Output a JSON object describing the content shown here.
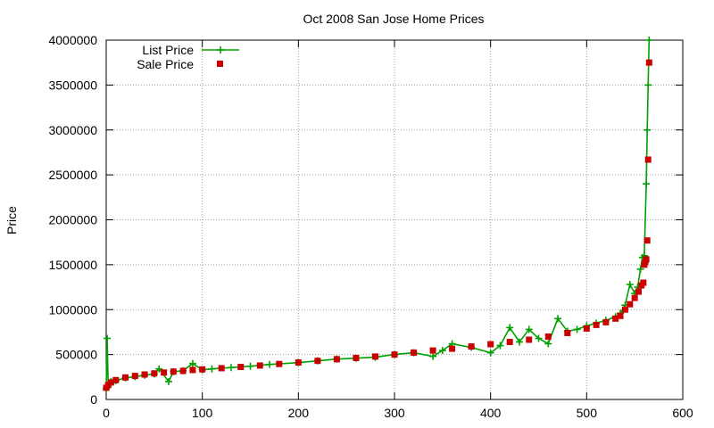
{
  "chart_data": {
    "type": "scatter",
    "title": "Oct 2008 San Jose Home Prices",
    "xlabel": "",
    "ylabel": "Price",
    "xlim": [
      0,
      600
    ],
    "ylim": [
      0,
      4000000
    ],
    "x_ticks": [
      0,
      100,
      200,
      300,
      400,
      500,
      600
    ],
    "y_ticks": [
      0,
      500000,
      1000000,
      1500000,
      2000000,
      2500000,
      3000000,
      3500000,
      4000000
    ],
    "grid": true,
    "legend_position": "top-left",
    "series": [
      {
        "name": "List Price",
        "style": "linespoints",
        "marker": "plus",
        "color": "#00a000",
        "points": [
          [
            0,
            120000
          ],
          [
            1,
            680000
          ],
          [
            2,
            150000
          ],
          [
            5,
            200000
          ],
          [
            10,
            210000
          ],
          [
            20,
            240000
          ],
          [
            30,
            255000
          ],
          [
            40,
            270000
          ],
          [
            50,
            285000
          ],
          [
            55,
            340000
          ],
          [
            65,
            200000
          ],
          [
            70,
            310000
          ],
          [
            80,
            320000
          ],
          [
            90,
            400000
          ],
          [
            100,
            330000
          ],
          [
            110,
            340000
          ],
          [
            130,
            355000
          ],
          [
            150,
            370000
          ],
          [
            170,
            390000
          ],
          [
            200,
            410000
          ],
          [
            220,
            430000
          ],
          [
            240,
            450000
          ],
          [
            260,
            460000
          ],
          [
            280,
            470000
          ],
          [
            300,
            500000
          ],
          [
            320,
            520000
          ],
          [
            340,
            480000
          ],
          [
            350,
            545000
          ],
          [
            360,
            620000
          ],
          [
            380,
            580000
          ],
          [
            400,
            520000
          ],
          [
            410,
            600000
          ],
          [
            420,
            800000
          ],
          [
            430,
            640000
          ],
          [
            440,
            780000
          ],
          [
            450,
            680000
          ],
          [
            460,
            620000
          ],
          [
            470,
            900000
          ],
          [
            480,
            760000
          ],
          [
            490,
            780000
          ],
          [
            500,
            820000
          ],
          [
            510,
            850000
          ],
          [
            520,
            880000
          ],
          [
            530,
            920000
          ],
          [
            535,
            960000
          ],
          [
            540,
            1050000
          ],
          [
            545,
            1280000
          ],
          [
            550,
            1180000
          ],
          [
            553,
            1250000
          ],
          [
            556,
            1450000
          ],
          [
            558,
            1580000
          ],
          [
            560,
            1600000
          ],
          [
            562,
            2400000
          ],
          [
            563,
            3000000
          ],
          [
            564,
            3500000
          ],
          [
            565,
            4000000
          ]
        ]
      },
      {
        "name": "Sale Price",
        "style": "points",
        "marker": "square",
        "color": "#cc0000",
        "points": [
          [
            0,
            130000
          ],
          [
            2,
            160000
          ],
          [
            5,
            190000
          ],
          [
            10,
            215000
          ],
          [
            20,
            245000
          ],
          [
            30,
            262000
          ],
          [
            40,
            278000
          ],
          [
            50,
            290000
          ],
          [
            60,
            300000
          ],
          [
            70,
            310000
          ],
          [
            80,
            318000
          ],
          [
            90,
            328000
          ],
          [
            100,
            335000
          ],
          [
            120,
            348000
          ],
          [
            140,
            362000
          ],
          [
            160,
            378000
          ],
          [
            180,
            395000
          ],
          [
            200,
            412000
          ],
          [
            220,
            430000
          ],
          [
            240,
            448000
          ],
          [
            260,
            462000
          ],
          [
            280,
            478000
          ],
          [
            300,
            500000
          ],
          [
            320,
            522000
          ],
          [
            340,
            545000
          ],
          [
            360,
            565000
          ],
          [
            380,
            590000
          ],
          [
            400,
            615000
          ],
          [
            420,
            640000
          ],
          [
            440,
            665000
          ],
          [
            460,
            700000
          ],
          [
            480,
            740000
          ],
          [
            500,
            790000
          ],
          [
            510,
            830000
          ],
          [
            520,
            860000
          ],
          [
            530,
            900000
          ],
          [
            535,
            930000
          ],
          [
            540,
            1000000
          ],
          [
            545,
            1060000
          ],
          [
            550,
            1130000
          ],
          [
            554,
            1200000
          ],
          [
            557,
            1270000
          ],
          [
            559,
            1300000
          ],
          [
            560,
            1500000
          ],
          [
            561,
            1530000
          ],
          [
            562,
            1560000
          ],
          [
            563,
            1770000
          ],
          [
            564,
            2670000
          ],
          [
            565,
            3750000
          ]
        ]
      }
    ]
  }
}
